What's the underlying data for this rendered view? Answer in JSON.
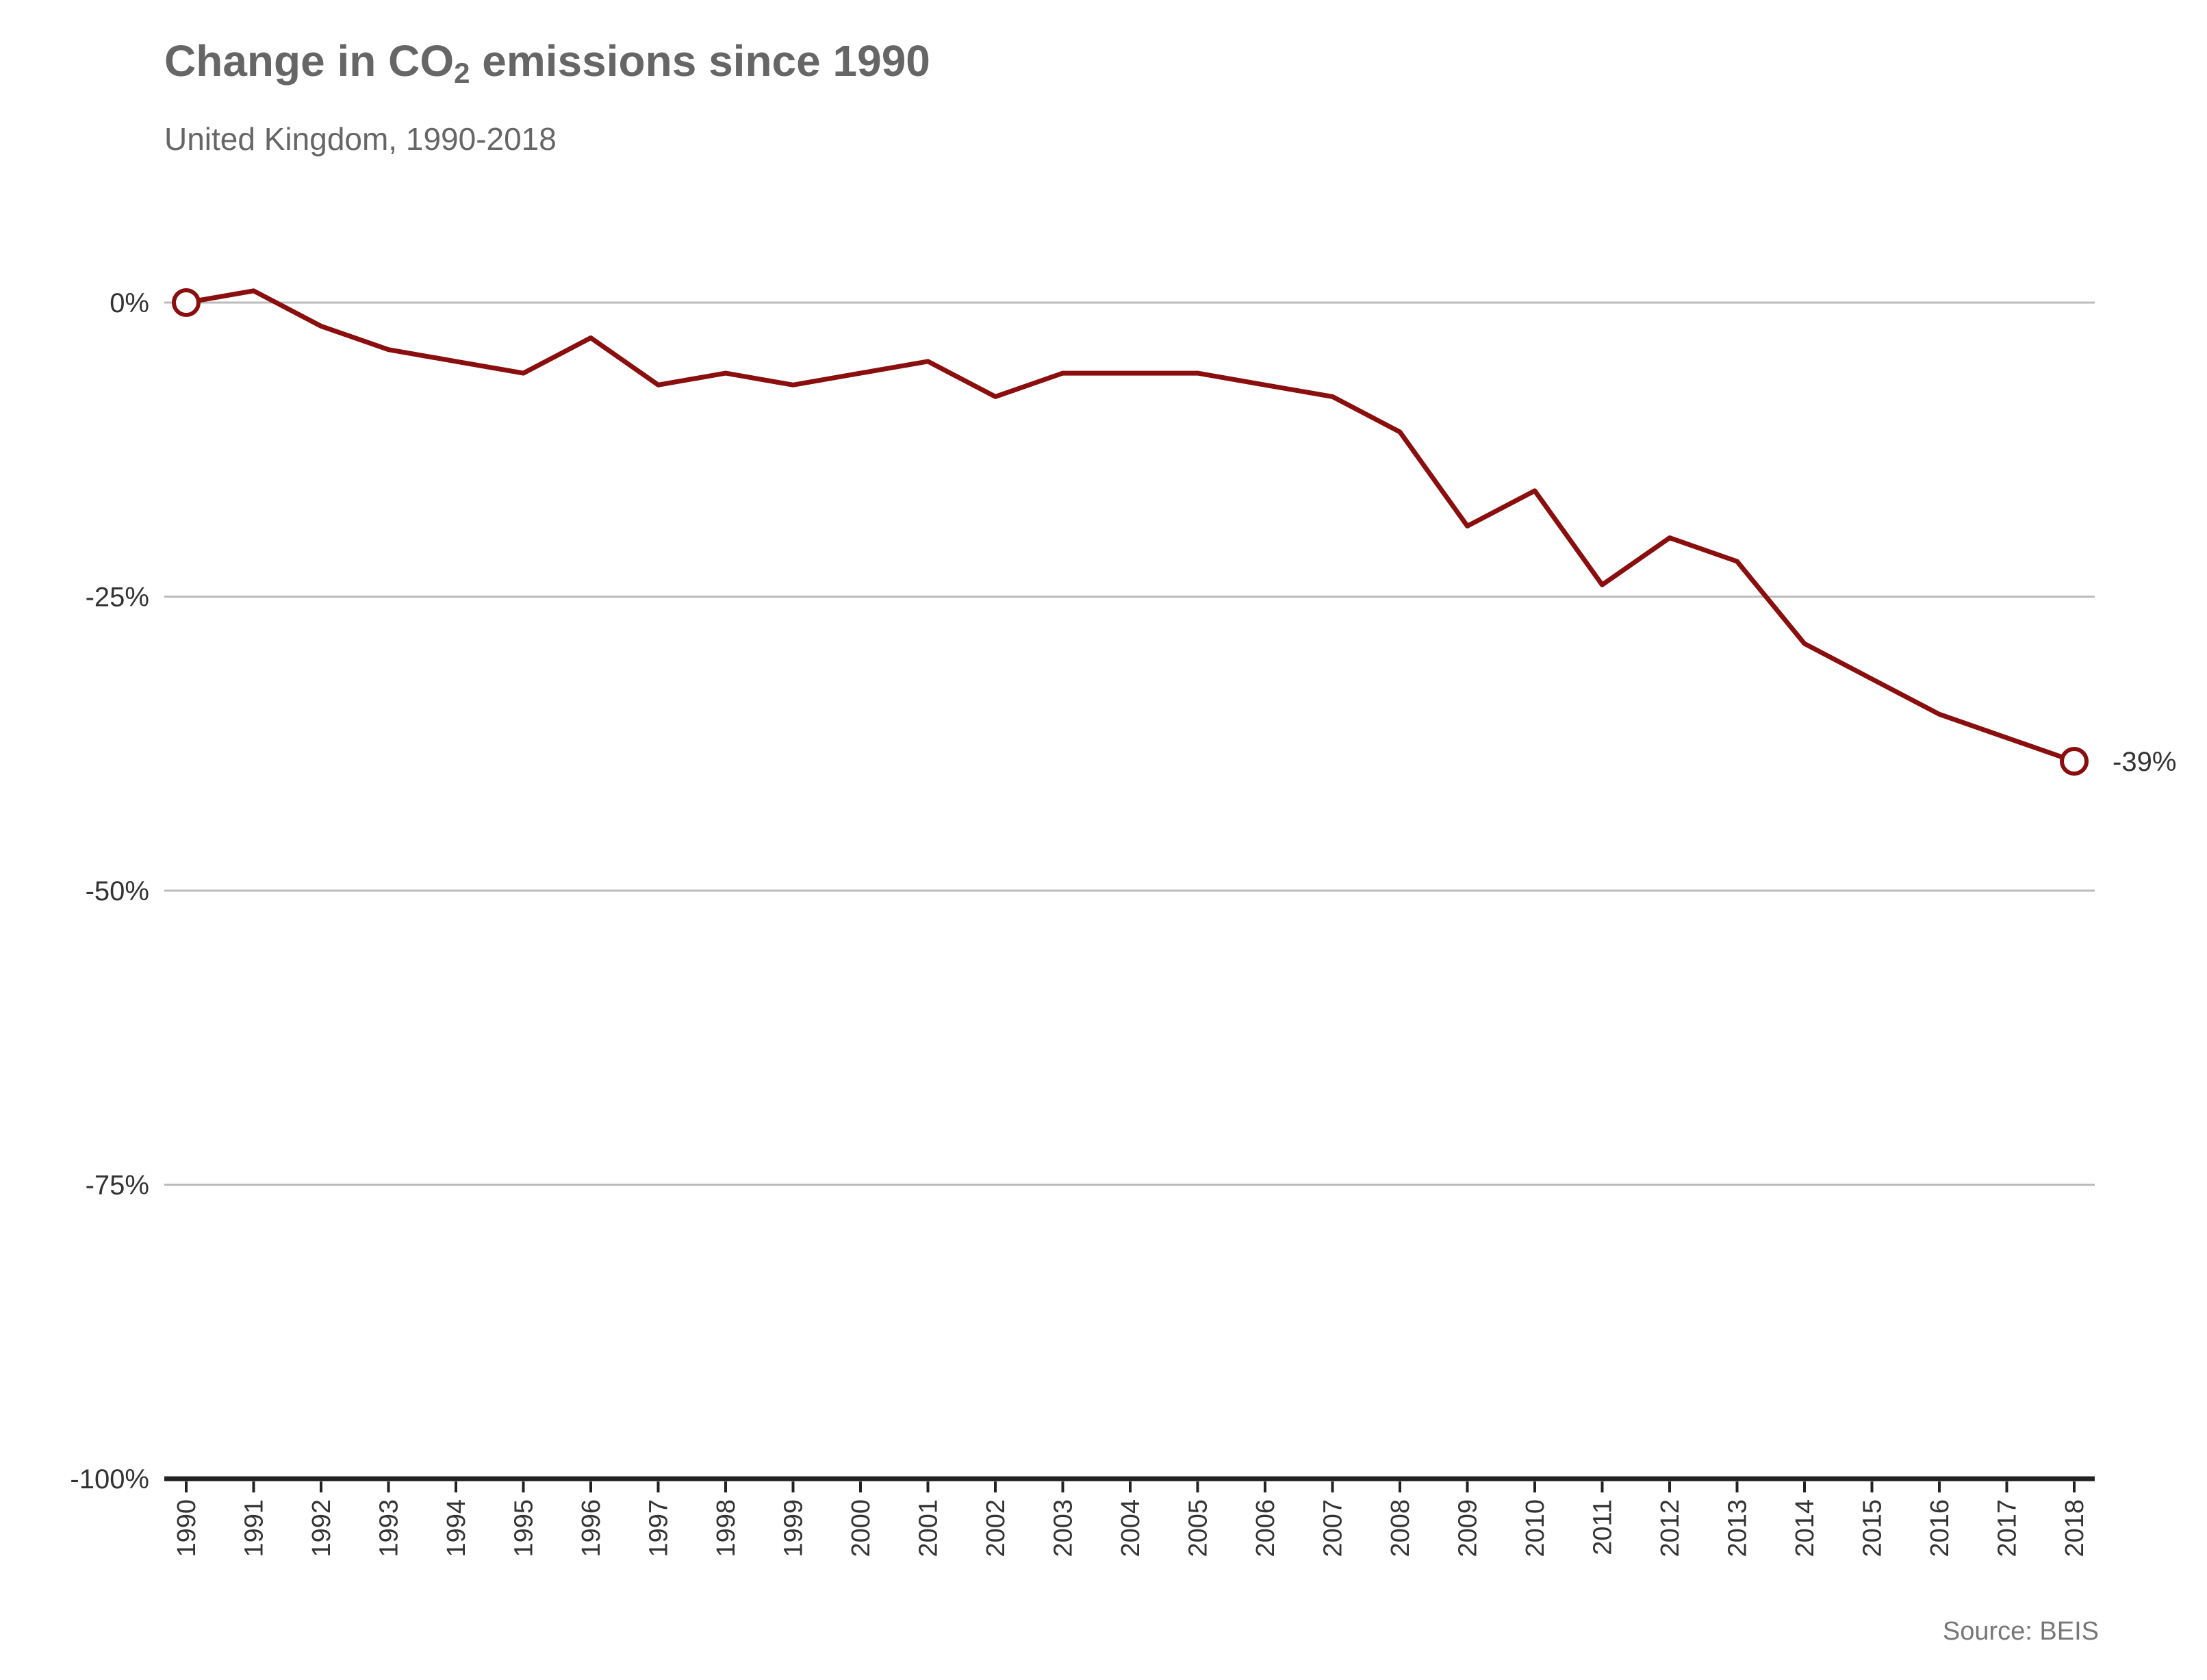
{
  "header": {
    "title_pre": "Change in CO",
    "title_sub": "2",
    "title_post": " emissions since 1990",
    "subtitle": "United Kingdom, 1990-2018"
  },
  "footer": {
    "source": "Source: BEIS"
  },
  "chart_data": {
    "type": "line",
    "title": "Change in CO2 emissions since 1990",
    "subtitle": "United Kingdom, 1990-2018",
    "xlabel": "",
    "ylabel": "",
    "ylim": [
      -100,
      0
    ],
    "yticks": [
      0,
      -25,
      -50,
      -75,
      -100
    ],
    "ytick_labels": [
      "0%",
      "-25%",
      "-50%",
      "-75%",
      "-100%"
    ],
    "x": [
      1990,
      1991,
      1992,
      1993,
      1994,
      1995,
      1996,
      1997,
      1998,
      1999,
      2000,
      2001,
      2002,
      2003,
      2004,
      2005,
      2006,
      2007,
      2008,
      2009,
      2010,
      2011,
      2012,
      2013,
      2014,
      2015,
      2016,
      2017,
      2018
    ],
    "series": [
      {
        "values": [
          0,
          1,
          -2,
          -4,
          -5,
          -6,
          -3,
          -7,
          -6,
          -7,
          -6,
          -5,
          -8,
          -6,
          -6,
          -6,
          -7,
          -8,
          -11,
          -19,
          -16,
          -24,
          -20,
          -22,
          -29,
          -32,
          -35,
          -37,
          -39
        ]
      }
    ],
    "end_label": "-39%",
    "grid": "horizontal",
    "legend": "none",
    "line_color": "#8b0e0e",
    "grid_color": "#bbbbbb",
    "baseline_color": "#222222"
  }
}
